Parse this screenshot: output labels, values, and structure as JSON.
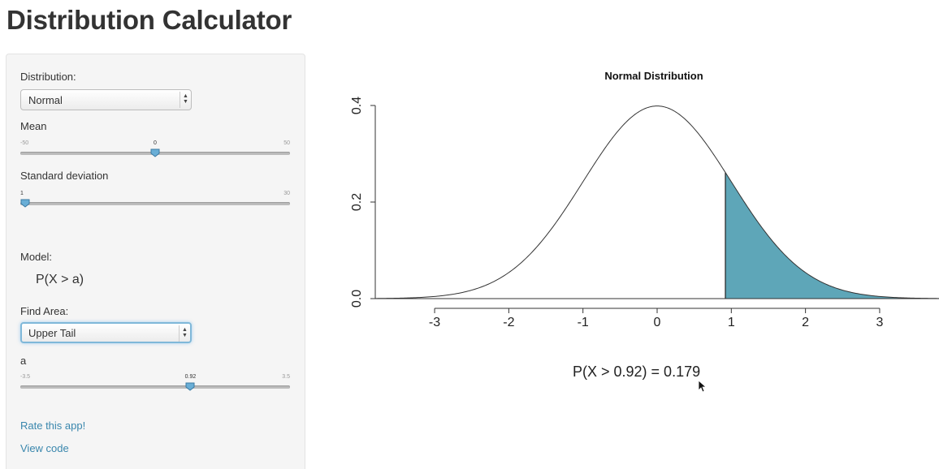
{
  "app": {
    "title": "Distribution Calculator"
  },
  "sidebar": {
    "distribution_label": "Distribution:",
    "distribution_value": "Normal",
    "mean": {
      "label": "Mean",
      "min": "-50",
      "max": "50",
      "value": "0",
      "value_fraction": 0.5
    },
    "sd": {
      "label": "Standard deviation",
      "min": "1",
      "max": "30",
      "value": "1",
      "value_fraction": 0.0
    },
    "model_label": "Model:",
    "model_value": "P(X > a)",
    "find_area_label": "Find Area:",
    "find_area_value": "Upper Tail",
    "a": {
      "label": "a",
      "min": "-3.5",
      "max": "3.5",
      "value": "0.92",
      "value_fraction": 0.631
    },
    "links": {
      "rate": "Rate this app!",
      "view_code": "View code"
    }
  },
  "plot": {
    "title": "Normal Distribution",
    "result": "P(X > 0.92) = 0.179",
    "fill_color": "#5ea6b8"
  },
  "chart_data": {
    "type": "area",
    "title": "Normal Distribution",
    "distribution": "normal",
    "mean": 0,
    "sd": 1,
    "shaded_from": 0.92,
    "shaded_tail": "upper",
    "area": 0.179,
    "xlim": [
      -3.8,
      3.8
    ],
    "ylim": [
      0,
      0.4
    ],
    "x_ticks": [
      "-3",
      "-2",
      "-1",
      "0",
      "1",
      "2",
      "3"
    ],
    "y_ticks": [
      "0.0",
      "0.2",
      "0.4"
    ]
  }
}
